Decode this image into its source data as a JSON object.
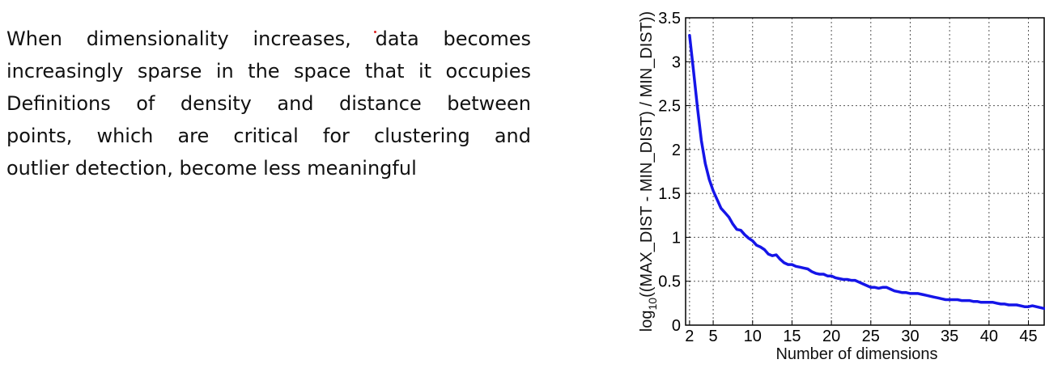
{
  "slide": {
    "lines": [
      "When dimensionality increases, data becomes",
      "increasingly sparse in the space that it occupies",
      "Definitions of density and distance between",
      "points, which are critical for clustering and",
      "outlier detection, become less meaningful"
    ]
  },
  "chart_data": {
    "type": "line",
    "xlabel": "Number of dimensions",
    "ylabel_parts": [
      "log",
      "10",
      "((MAX_DIST - MIN_DIST) / MIN_DIST))"
    ],
    "xlim": [
      1.5,
      47
    ],
    "ylim": [
      0,
      3.5
    ],
    "xticks": [
      2,
      5,
      10,
      15,
      20,
      25,
      30,
      35,
      40,
      45
    ],
    "yticks": [
      0,
      0.5,
      1,
      1.5,
      2,
      2.5,
      3,
      3.5
    ],
    "grid": true,
    "series": [
      {
        "color": "#1515e8",
        "x": [
          2,
          2.5,
          3,
          3.5,
          4,
          4.5,
          5,
          5.5,
          6,
          6.5,
          7,
          7.5,
          8,
          8.5,
          9,
          9.5,
          10,
          10.5,
          11,
          11.5,
          12,
          12.5,
          13,
          13.5,
          14,
          14.5,
          15,
          15.5,
          16,
          16.5,
          17,
          17.5,
          18,
          18.5,
          19,
          19.5,
          20,
          20.5,
          21,
          21.5,
          22,
          22.5,
          23,
          23.5,
          24,
          24.5,
          25,
          25.5,
          26,
          26.5,
          27,
          27.5,
          28,
          28.5,
          29,
          29.5,
          30,
          30.5,
          31,
          31.5,
          32,
          32.5,
          33,
          33.5,
          34,
          34.5,
          35,
          35.5,
          36,
          36.5,
          37,
          37.5,
          38,
          38.5,
          39,
          39.5,
          40,
          40.5,
          41,
          41.5,
          42,
          42.5,
          43,
          43.5,
          44,
          44.5,
          45,
          45.5,
          46,
          46.5,
          47
        ],
        "y": [
          3.3,
          2.9,
          2.48,
          2.1,
          1.84,
          1.66,
          1.53,
          1.43,
          1.33,
          1.28,
          1.23,
          1.15,
          1.09,
          1.08,
          1.03,
          0.99,
          0.96,
          0.91,
          0.89,
          0.86,
          0.81,
          0.79,
          0.8,
          0.75,
          0.71,
          0.69,
          0.69,
          0.67,
          0.66,
          0.65,
          0.64,
          0.61,
          0.59,
          0.58,
          0.58,
          0.56,
          0.56,
          0.54,
          0.53,
          0.52,
          0.52,
          0.51,
          0.51,
          0.49,
          0.47,
          0.45,
          0.43,
          0.43,
          0.42,
          0.43,
          0.43,
          0.41,
          0.39,
          0.38,
          0.37,
          0.37,
          0.36,
          0.36,
          0.36,
          0.35,
          0.34,
          0.33,
          0.32,
          0.31,
          0.3,
          0.29,
          0.29,
          0.29,
          0.29,
          0.28,
          0.28,
          0.28,
          0.27,
          0.27,
          0.26,
          0.26,
          0.26,
          0.26,
          0.25,
          0.24,
          0.24,
          0.23,
          0.23,
          0.23,
          0.22,
          0.21,
          0.21,
          0.22,
          0.21,
          0.2,
          0.19
        ]
      }
    ]
  }
}
